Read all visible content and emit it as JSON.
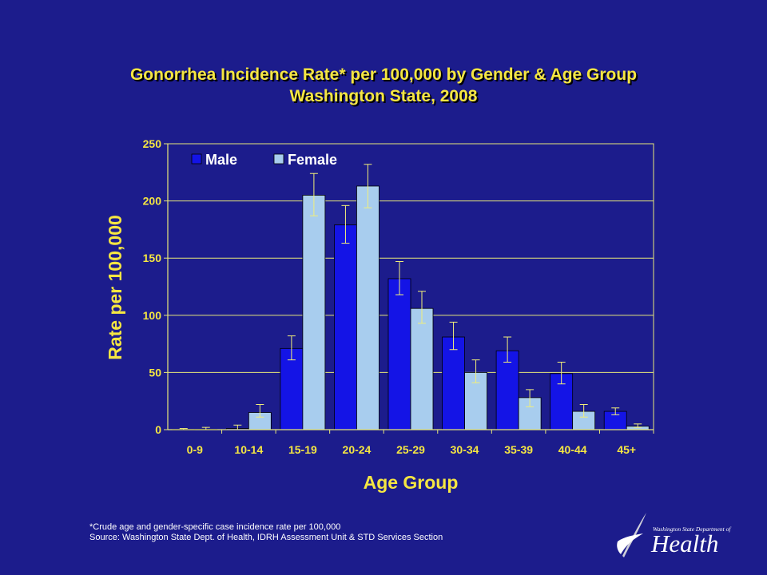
{
  "title": {
    "line1": "Gonorrhea Incidence Rate* per 100,000 by Gender & Age Group",
    "line2": "Washington State, 2008"
  },
  "footnote": {
    "line1": "*Crude age and gender-specific case incidence rate per 100,000",
    "line2": "Source: Washington State Dept. of Health, IDRH Assessment Unit & STD Services Section"
  },
  "logo": {
    "small_text": "Washington State Department of",
    "big_text": "Health"
  },
  "colors": {
    "background": "#1c1c8c",
    "title": "#f5e642",
    "male": "#1414e6",
    "female": "#a8cdee",
    "error_bar": "#f2ef7a",
    "axis_text": "#f5e642"
  },
  "chart_data": {
    "type": "bar",
    "xlabel": "Age Group",
    "ylabel": "Rate per 100,000",
    "ylim": [
      0,
      250
    ],
    "yticks": [
      0,
      50,
      100,
      150,
      200,
      250
    ],
    "grid": true,
    "legend": "top-left",
    "categories": [
      "0-9",
      "10-14",
      "15-19",
      "20-24",
      "25-29",
      "30-34",
      "35-39",
      "40-44",
      "45+"
    ],
    "series": [
      {
        "name": "Male",
        "values": [
          0.2,
          1,
          71,
          179,
          132,
          81,
          69,
          49,
          16
        ],
        "err_low": [
          0,
          0,
          61,
          163,
          118,
          70,
          59,
          40,
          13
        ],
        "err_high": [
          1,
          4,
          82,
          196,
          147,
          94,
          81,
          59,
          19
        ]
      },
      {
        "name": "Female",
        "values": [
          0.3,
          15,
          205,
          213,
          106,
          50,
          28,
          16,
          3
        ],
        "err_low": [
          0,
          11,
          187,
          194,
          93,
          41,
          20,
          11,
          2
        ],
        "err_high": [
          2,
          22,
          224,
          232,
          121,
          61,
          35,
          22,
          5
        ]
      }
    ]
  }
}
